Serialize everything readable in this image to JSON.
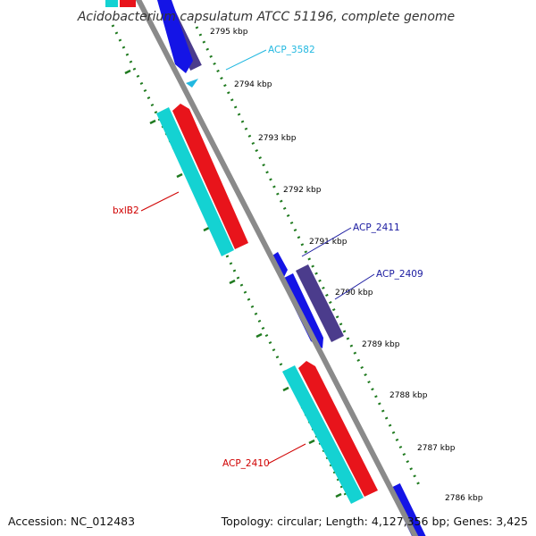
{
  "title": "Acidobacterium capsulatum ATCC 51196, complete genome",
  "footer": {
    "accession": "Accession: NC_012483",
    "summary": "Topology: circular; Length: 4,127,356 bp; Genes: 3,425"
  },
  "colors": {
    "backbone": "#8a8a8a",
    "forward_cds": "#e8141b",
    "forward_gene": "#14d2d2",
    "reverse_cds": "#1414e6",
    "reverse_gene": "#4b3c8c",
    "tick": "#1f7a1f",
    "label_red": "#d00000",
    "label_blue": "#1a1aa0",
    "label_cyan": "#22b8e0"
  },
  "ticks": [
    {
      "kbp": 2795,
      "label": "2795 kbp"
    },
    {
      "kbp": 2794,
      "label": "2794 kbp"
    },
    {
      "kbp": 2793,
      "label": "2793 kbp"
    },
    {
      "kbp": 2792,
      "label": "2792 kbp"
    },
    {
      "kbp": 2791,
      "label": "2791 kbp"
    },
    {
      "kbp": 2790,
      "label": "2790 kbp"
    },
    {
      "kbp": 2789,
      "label": "2789 kbp"
    },
    {
      "kbp": 2788,
      "label": "2788 kbp"
    },
    {
      "kbp": 2787,
      "label": "2787 kbp"
    },
    {
      "kbp": 2786,
      "label": "2786 kbp"
    }
  ],
  "genes": [
    {
      "label": "bxlB2",
      "strand": "forward"
    },
    {
      "label": "ACP_2410",
      "strand": "forward"
    },
    {
      "label": "ACP_3582",
      "strand": "reverse"
    },
    {
      "label": "ACP_2411",
      "strand": "reverse"
    },
    {
      "label": "ACP_2409",
      "strand": "reverse"
    }
  ]
}
